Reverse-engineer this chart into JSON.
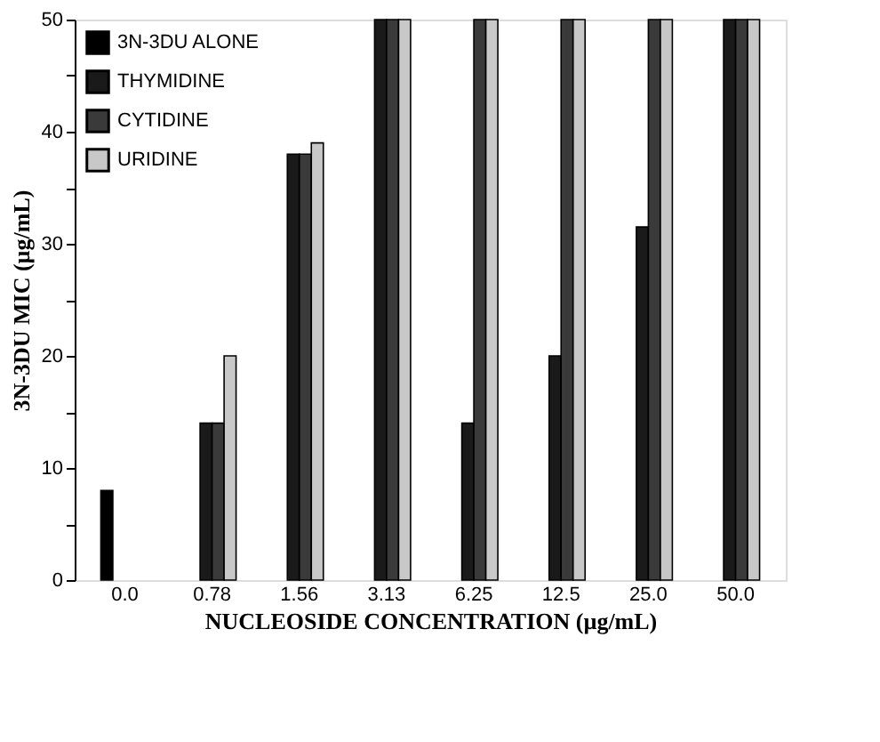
{
  "chart_data": {
    "type": "bar",
    "xlabel": "NUCLEOSIDE CONCENTRATION (µg/mL)",
    "ylabel": "3N-3DU MIC (µg/mL)",
    "categories": [
      "0.0",
      "0.78",
      "1.56",
      "3.13",
      "6.25",
      "12.5",
      "25.0",
      "50.0"
    ],
    "series": [
      {
        "name": "3N-3DU ALONE",
        "color": "#000000",
        "values": [
          8,
          null,
          null,
          null,
          null,
          null,
          null,
          null
        ]
      },
      {
        "name": "THYMIDINE",
        "color": "#1a1a1a",
        "values": [
          null,
          14,
          38,
          50,
          14,
          20,
          31.5,
          50
        ]
      },
      {
        "name": "CYTIDINE",
        "color": "#3a3a3a",
        "values": [
          null,
          14,
          38,
          50,
          50,
          50,
          50,
          50
        ]
      },
      {
        "name": "URIDINE",
        "color": "#c8c8c8",
        "values": [
          null,
          20,
          39,
          50,
          50,
          50,
          50,
          50
        ]
      }
    ],
    "ylim": [
      0,
      50
    ],
    "yticks": [
      0,
      {
        "value": 5,
        "label": null
      },
      10,
      {
        "value": 15,
        "label": null
      },
      20,
      {
        "value": 25,
        "label": null
      },
      30,
      {
        "value": 35,
        "label": null
      },
      40,
      {
        "value": 45,
        "label": null
      },
      50
    ],
    "legend": "top left",
    "grid": false
  }
}
